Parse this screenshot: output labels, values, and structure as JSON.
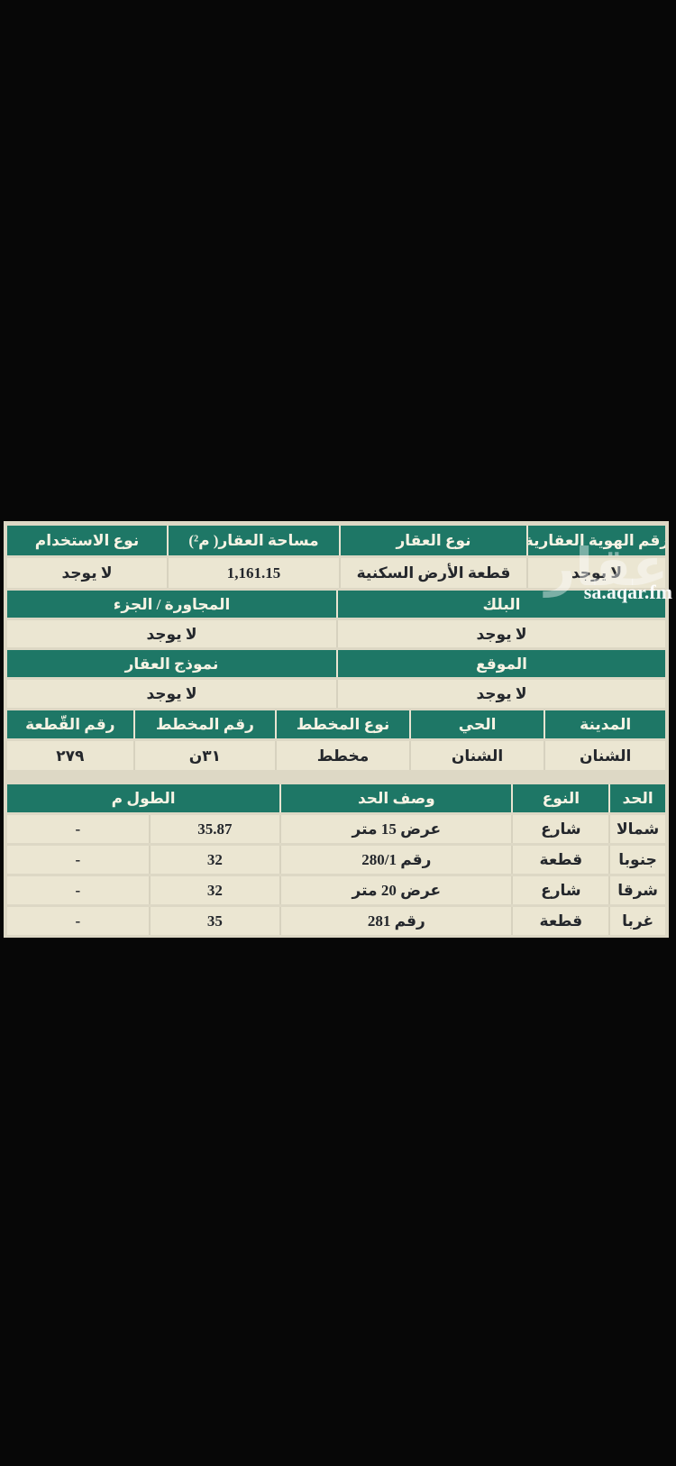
{
  "colors": {
    "table_green": "#1e7766",
    "row_cream": "#ebe6d2",
    "page_black": "#070707",
    "header_text": "#f7f3e4",
    "value_text": "#24272c"
  },
  "watermark": {
    "logo": "عقار",
    "site": "sa.aqar.fm"
  },
  "property_table": {
    "header_row1": {
      "identity_no": "رقم الهوية العقارية",
      "property_type": "نوع العقار",
      "area": "مساحة العقار( م²)",
      "usage_type": "نوع الاستخدام"
    },
    "value_row1": {
      "identity_no": "لا يوجد",
      "property_type": "قطعة الأرض السكنية",
      "area": "1,161.15",
      "usage_type": "لا يوجد"
    },
    "header_row2": {
      "block": "البلك",
      "adjacent_part": "المجاورة / الجزء"
    },
    "value_row2": {
      "block": "لا يوجد",
      "adjacent_part": "لا يوجد"
    },
    "header_row3": {
      "location": "الموقع",
      "property_model": "نموذج العقار"
    },
    "value_row3": {
      "location": "لا يوجد",
      "property_model": "لا يوجد"
    },
    "header_row4": {
      "city": "المدينة",
      "district": "الحي",
      "plan_type": "نوع المخطط",
      "plan_no": "رقم المخطط",
      "plot_no": "رقم القّطعة"
    },
    "value_row4": {
      "city": "الشنان",
      "district": "الشنان",
      "plan_type": "مخطط",
      "plan_no": "٣١ن",
      "plot_no": "٢٧٩"
    }
  },
  "boundaries_table": {
    "header": {
      "side": "الحد",
      "type": "النوع",
      "description": "وصف الحد",
      "length_m": "الطول م"
    },
    "rows": [
      {
        "side": "شمالا",
        "type": "شارع",
        "description": "عرض 15 متر",
        "length": "35.87",
        "extra": "-"
      },
      {
        "side": "جنوبا",
        "type": "قطعة",
        "description": "رقم 280/1",
        "length": "32",
        "extra": "-"
      },
      {
        "side": "شرقا",
        "type": "شارع",
        "description": "عرض 20 متر",
        "length": "32",
        "extra": "-"
      },
      {
        "side": "غربا",
        "type": "قطعة",
        "description": "رقم 281",
        "length": "35",
        "extra": "-"
      }
    ]
  }
}
